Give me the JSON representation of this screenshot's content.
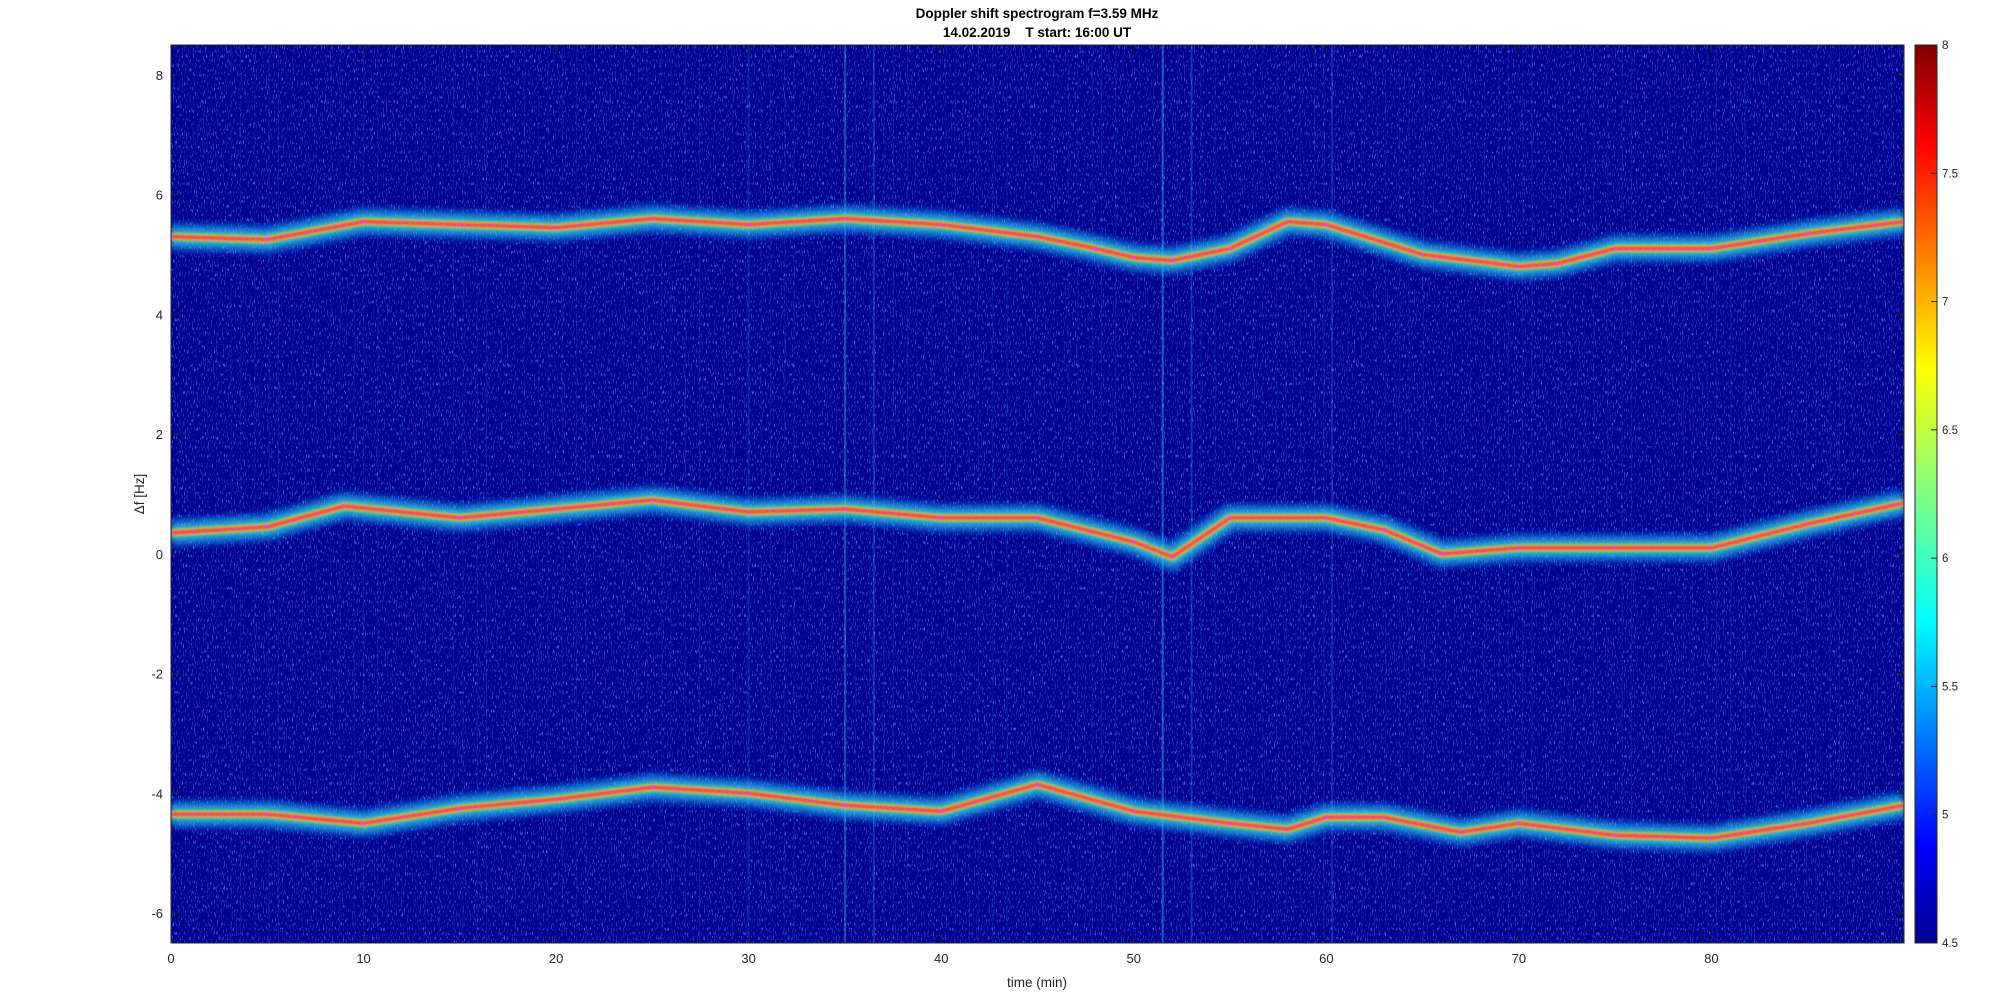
{
  "chart_data": {
    "type": "heatmap",
    "title": "Doppler shift spectrogram f=3.59 MHz",
    "subtitle": "14.02.2019    T start: 16:00 UT",
    "xlabel": "time (min)",
    "ylabel": "Δf [Hz]",
    "xlim": [
      0,
      90
    ],
    "ylim": [
      -6.5,
      8.5
    ],
    "x_ticks": [
      0,
      10,
      20,
      30,
      40,
      50,
      60,
      70,
      80
    ],
    "y_ticks": [
      -6,
      -4,
      -2,
      0,
      2,
      4,
      6,
      8
    ],
    "colorbar": {
      "colormap": "jet",
      "clim": [
        4.5,
        8
      ],
      "ticks": [
        4.5,
        5,
        5.5,
        6,
        6.5,
        7,
        7.5,
        8
      ]
    },
    "series": [
      {
        "x": [
          0,
          5,
          10,
          15,
          20,
          25,
          30,
          35,
          40,
          45,
          48,
          50,
          52,
          55,
          58,
          60,
          65,
          70,
          72,
          75,
          80,
          85,
          90
        ],
        "y": [
          5.3,
          5.25,
          5.55,
          5.5,
          5.45,
          5.6,
          5.5,
          5.6,
          5.5,
          5.3,
          5.1,
          4.95,
          4.9,
          5.1,
          5.55,
          5.5,
          5.0,
          4.8,
          4.85,
          5.1,
          5.1,
          5.35,
          5.55
        ]
      },
      {
        "x": [
          0,
          5,
          9,
          15,
          20,
          25,
          30,
          35,
          40,
          45,
          50,
          52,
          55,
          60,
          63,
          66,
          70,
          75,
          80,
          85,
          90
        ],
        "y": [
          0.35,
          0.45,
          0.8,
          0.6,
          0.75,
          0.9,
          0.7,
          0.75,
          0.6,
          0.6,
          0.2,
          -0.05,
          0.6,
          0.6,
          0.4,
          0.0,
          0.1,
          0.1,
          0.1,
          0.5,
          0.85
        ]
      },
      {
        "x": [
          0,
          5,
          10,
          15,
          20,
          25,
          30,
          35,
          40,
          45,
          50,
          55,
          58,
          60,
          63,
          67,
          70,
          75,
          80,
          85,
          90
        ],
        "y": [
          -4.35,
          -4.35,
          -4.5,
          -4.25,
          -4.1,
          -3.9,
          -4.0,
          -4.2,
          -4.3,
          -3.85,
          -4.3,
          -4.5,
          -4.6,
          -4.4,
          -4.4,
          -4.65,
          -4.5,
          -4.7,
          -4.75,
          -4.5,
          -4.2
        ]
      }
    ]
  }
}
